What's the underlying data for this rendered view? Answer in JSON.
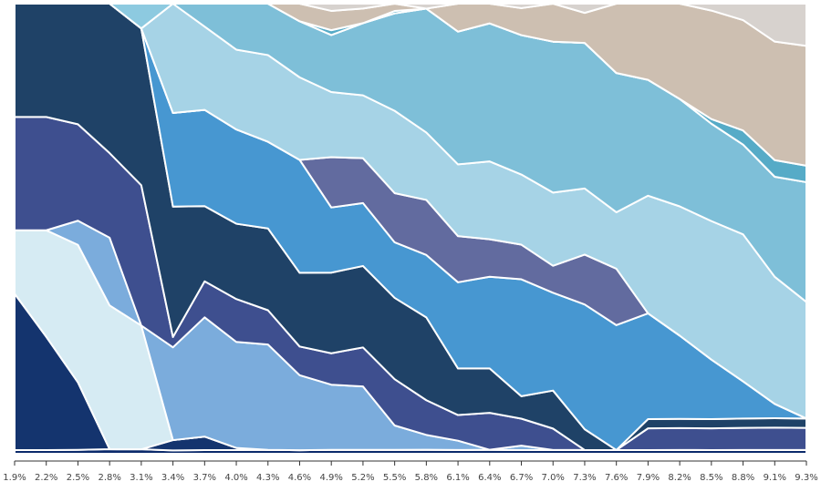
{
  "chart_data": {
    "type": "area",
    "stacked": true,
    "normalized": true,
    "x": [
      "1.9%",
      "2.2%",
      "2.5%",
      "2.8%",
      "3.1%",
      "3.4%",
      "3.7%",
      "4.0%",
      "4.3%",
      "4.6%",
      "4.9%",
      "5.2%",
      "5.5%",
      "5.8%",
      "6.1%",
      "6.4%",
      "6.7%",
      "7.0%",
      "7.3%",
      "7.6%",
      "7.9%",
      "8.2%",
      "8.5%",
      "8.8%",
      "9.1%",
      "9.3%"
    ],
    "ylim": [
      0,
      1
    ],
    "grid": false,
    "legend": "none",
    "series": [
      {
        "color": "#0b2a6b",
        "values": [
          0.008,
          0.008,
          0.008,
          0.008,
          0.008,
          0.008,
          0.008,
          0.008,
          0.008,
          0.008,
          0.008,
          0.008,
          0.008,
          0.008,
          0.008,
          0.008,
          0.008,
          0.008,
          0.008,
          0.008,
          0.008,
          0.008,
          0.008,
          0.008,
          0.008,
          0.008
        ]
      },
      {
        "color": "#14346e",
        "values": [
          0.345,
          0.25,
          0.14,
          0.0,
          0.0,
          0.025,
          0.03,
          0.005,
          0.0,
          0.0,
          0.0,
          0.0,
          0.0,
          0.0,
          0.0,
          0.0,
          0.0,
          0.0,
          0.0,
          0.0,
          0.0,
          0.0,
          0.0,
          0.0,
          0.0,
          0.0
        ]
      },
      {
        "color": "#d6ebf3",
        "values": [
          0.14,
          0.235,
          0.285,
          0.255,
          0.225,
          0.0,
          0.0,
          0.0,
          0.0,
          0.0,
          0.0,
          0.0,
          0.0,
          0.0,
          0.0,
          0.0,
          0.0,
          0.0,
          0.0,
          0.0,
          0.0,
          0.0,
          0.0,
          0.0,
          0.0,
          0.0
        ]
      },
      {
        "color": "#7bacdc",
        "values": [
          0.0,
          0.0,
          0.05,
          0.12,
          0.0,
          0.225,
          0.265,
          0.235,
          0.215,
          0.17,
          0.135,
          0.13,
          0.05,
          0.03,
          0.02,
          0.0,
          0.01,
          0.0,
          0.0,
          0.0,
          0.0,
          0.0,
          0.0,
          0.0,
          0.0,
          0.0
        ]
      },
      {
        "color": "#3e4f8f",
        "values": [
          0.25,
          0.25,
          0.2,
          0.15,
          0.255,
          0.025,
          0.08,
          0.095,
          0.07,
          0.065,
          0.065,
          0.08,
          0.095,
          0.07,
          0.055,
          0.075,
          0.06,
          0.045,
          0.0,
          0.0,
          0.047,
          0.047,
          0.047,
          0.047,
          0.047,
          0.047
        ]
      },
      {
        "color": "#1f4267",
        "values": [
          0.25,
          0.25,
          0.25,
          0.265,
          0.285,
          0.316,
          0.167,
          0.167,
          0.167,
          0.167,
          0.167,
          0.167,
          0.167,
          0.167,
          0.1,
          0.09,
          0.05,
          0.08,
          0.045,
          0.0,
          0.02,
          0.02,
          0.02,
          0.02,
          0.02,
          0.02
        ]
      },
      {
        "color": "#4797d1",
        "values": [
          0.0,
          0.0,
          0.0,
          0.0,
          0.0,
          0.227,
          0.214,
          0.209,
          0.177,
          0.256,
          0.135,
          0.129,
          0.114,
          0.126,
          0.185,
          0.186,
          0.26,
          0.206,
          0.27,
          0.27,
          0.229,
          0.179,
          0.129,
          0.079,
          0.03,
          0.0
        ]
      },
      {
        "color": "#626b9f",
        "values": [
          0.0,
          0.0,
          0.0,
          0.0,
          0.0,
          0.0,
          0.0,
          0.0,
          0.0,
          0.0,
          0.104,
          0.092,
          0.101,
          0.111,
          0.099,
          0.076,
          0.077,
          0.057,
          0.108,
          0.122,
          0.0,
          0.0,
          0.0,
          0.0,
          0.0,
          0.0
        ]
      },
      {
        "color": "#a6d3e6",
        "values": [
          0.0,
          0.0,
          0.0,
          0.0,
          0.0,
          0.265,
          0.185,
          0.177,
          0.177,
          0.187,
          0.135,
          0.129,
          0.169,
          0.136,
          0.154,
          0.158,
          0.156,
          0.154,
          0.143,
          0.122,
          0.255,
          0.278,
          0.3,
          0.313,
          0.268,
          0.248
        ]
      },
      {
        "color": "#7ebfd8",
        "values": [
          0.0,
          0.0,
          0.0,
          0.0,
          0.0,
          0.0,
          0.051,
          0.102,
          0.105,
          0.127,
          0.118,
          0.148,
          0.2,
          0.25,
          0.285,
          0.28,
          0.31,
          0.318,
          0.315,
          0.301,
          0.251,
          0.231,
          0.211,
          0.191,
          0.211,
          0.255
        ]
      },
      {
        "color": "#8dcae0",
        "values": [
          0.0,
          0.0,
          0.0,
          0.0,
          0.045,
          0.0,
          0.0,
          0.0,
          0.0,
          0.0,
          0.0,
          0.0,
          0.0,
          0.0,
          0.0,
          0.0,
          0.0,
          0.0,
          0.0,
          0.0,
          0.0,
          0.0,
          0.0,
          0.0,
          0.0,
          0.0
        ]
      },
      {
        "color": "#56abc7",
        "values": [
          0.0,
          0.0,
          0.0,
          0.0,
          0.0,
          0.0,
          0.0,
          0.0,
          0.0,
          0.0,
          0.01,
          0.0,
          0.005,
          0.0,
          0.0,
          0.0,
          0.0,
          0.0,
          0.0,
          0.0,
          0.0,
          0.0,
          0.01,
          0.03,
          0.035,
          0.035
        ]
      },
      {
        "color": "#cdbfb1",
        "values": [
          0.0,
          0.0,
          0.0,
          0.0,
          0.0,
          0.0,
          0.0,
          0.0,
          0.0,
          0.04,
          0.04,
          0.03,
          0.015,
          0.0,
          0.06,
          0.04,
          0.06,
          0.08,
          0.065,
          0.15,
          0.165,
          0.205,
          0.235,
          0.235,
          0.25,
          0.255
        ]
      },
      {
        "color": "#d7d2ce",
        "values": [
          0.0,
          0.0,
          0.0,
          0.0,
          0.0,
          0.0,
          0.0,
          0.0,
          0.0,
          0.0,
          0.015,
          0.01,
          0.0,
          0.01,
          0.0,
          0.0,
          0.01,
          0.0,
          0.02,
          0.0,
          0.0,
          0.0,
          0.015,
          0.035,
          0.08,
          0.09
        ]
      }
    ]
  }
}
